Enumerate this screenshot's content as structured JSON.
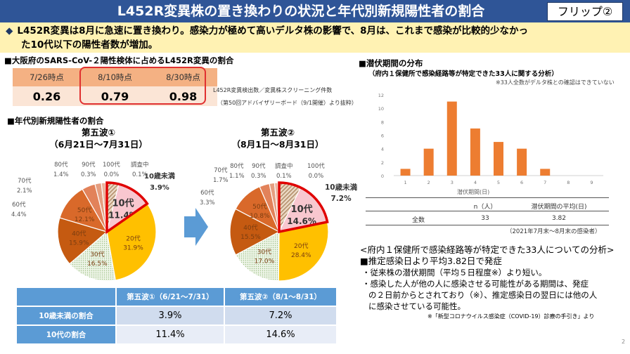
{
  "header": {
    "title": "L452R変異株の置き換わりの状況と年代別新規陽性者の割合",
    "flip_label": "フリップ②"
  },
  "summary": {
    "bullet": "◆",
    "line1": "L452R変異は8月に急速に置き換わり。感染力が極めて高いデルタ株の影響で、8月は、これまで感染が比較的少なかっ",
    "line2": "た10代以下の陽性者数が増加。"
  },
  "l452r": {
    "heading": "■大阪府のSARS-CoV-２陽性検体に占めるL452R変異の割合",
    "columns": [
      "7/26時点",
      "8/10時点",
      "8/30時点"
    ],
    "values": [
      "0.26",
      "0.79",
      "0.98"
    ],
    "note1": "L452R変異検出数／変異株スクリーニング件数",
    "note2": "（第50回アドバイザリーボード（9/1開催）より抜粋）"
  },
  "age": {
    "heading": "■年代別新規陽性者の割合",
    "wave1": {
      "title1": "第五波①",
      "title2": "（6月21日～7月31日）"
    },
    "wave2": {
      "title1": "第五波②",
      "title2": "（8月1日～8月31日）"
    }
  },
  "chart_data": [
    {
      "type": "pie",
      "title": "第五波①（6月21日～7月31日）",
      "labels": [
        "10歳未満",
        "10代",
        "20代",
        "30代",
        "40代",
        "50代",
        "60代",
        "70代",
        "80代",
        "90代",
        "100代",
        "調査中"
      ],
      "values": [
        3.9,
        11.4,
        31.9,
        16.5,
        15.9,
        12.1,
        4.4,
        2.1,
        1.4,
        0.3,
        0.0,
        0.1
      ],
      "value_labels": [
        "3.9%",
        "11.4%",
        "31.9%",
        "16.5%",
        "15.9%",
        "12.1%",
        "4.4%",
        "2.1%",
        "1.4%",
        "0.3%",
        "0.0%",
        "0.1%"
      ],
      "colors": [
        "#a0785a",
        "#f8c7cf",
        "#ffc000",
        "#d9ead3",
        "#c55a11",
        "#d9692a",
        "#e2825a",
        "#e59e80",
        "#ebb39c",
        "#f0c4ad",
        "#f3d1c0",
        "#f7e0d2"
      ],
      "highlight": [
        "10歳未満",
        "10代"
      ]
    },
    {
      "type": "pie",
      "title": "第五波②（8月1日～8月31日）",
      "labels": [
        "10歳未満",
        "10代",
        "20代",
        "30代",
        "40代",
        "50代",
        "60代",
        "70代",
        "80代",
        "90代",
        "100代",
        "調査中"
      ],
      "values": [
        7.2,
        14.6,
        28.4,
        17.0,
        15.5,
        10.8,
        3.3,
        1.7,
        1.1,
        0.3,
        0.0,
        0.1
      ],
      "value_labels": [
        "7.2%",
        "14.6%",
        "28.4%",
        "17.0%",
        "15.5%",
        "10.8%",
        "3.3%",
        "1.7%",
        "1.1%",
        "0.3%",
        "0.0%",
        "0.1%"
      ],
      "colors": [
        "#a0785a",
        "#f8c7cf",
        "#ffc000",
        "#d9ead3",
        "#c55a11",
        "#d9692a",
        "#e2825a",
        "#e59e80",
        "#ebb39c",
        "#f0c4ad",
        "#f3d1c0",
        "#f7e0d2"
      ],
      "highlight": [
        "10歳未満",
        "10代"
      ]
    },
    {
      "type": "bar",
      "title": "潜伏期間の分布",
      "categories": [
        "1",
        "2",
        "3",
        "4",
        "5",
        "6",
        "7",
        "8",
        "9"
      ],
      "values": [
        1,
        4,
        11,
        7,
        5,
        4,
        1,
        0,
        0
      ],
      "xlabel": "潜伏期間(日)",
      "ylabel": "",
      "ylim": [
        0,
        12
      ],
      "yticks": [
        "0",
        "2",
        "4",
        "6",
        "8",
        "10",
        "12"
      ],
      "color": "#ed7d31",
      "grid": false
    }
  ],
  "comparison": {
    "headers": [
      "",
      "第五波①（6/21～7/31）",
      "第五波②（8/1～8/31）"
    ],
    "rows": [
      {
        "label": "10歳未満の割合",
        "v1": "3.9%",
        "v2": "7.2%"
      },
      {
        "label": "10代の割合",
        "v1": "11.4%",
        "v2": "14.6%"
      }
    ]
  },
  "incubation": {
    "heading": "■潜伏期間の分布",
    "subheading": "（府内１保健所で感染経路等が特定できた33人に関する分析）",
    "note": "※33人全数がデルタ株との確認はできていない",
    "table": {
      "headers": [
        "",
        "n（人）",
        "潜伏期間の平均(日)"
      ],
      "row": [
        "全数",
        "33",
        "3.82"
      ]
    },
    "period_note": "（2021年7月末～8月末の感染者）"
  },
  "analysis": {
    "title": "<府内１保健所で感染経路等が特定できた33人についての分析>",
    "point": "■推定感染日より平均3.82日で発症",
    "bullet1": "・従来株の潜伏期間（平均５日程度※）より短い。",
    "bullet2a": "・感染した人が他の人に感染させる可能性がある期間は、発症",
    "bullet2b": "の２日前からとされており（※）、推定感染日の翌日には他の人",
    "bullet2c": "に感染させている可能性。",
    "source": "※「新型コロナウイルス感染症（COVID-19）診療の手引き」より"
  },
  "page_number": "2"
}
